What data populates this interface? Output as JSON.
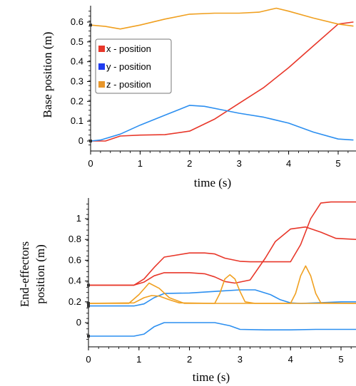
{
  "chart_data": [
    {
      "type": "line",
      "xlabel": "time (s)",
      "ylabel": "Base position (m)",
      "xlim": [
        0,
        5.3
      ],
      "ylim": [
        -0.02,
        0.66
      ],
      "xticks": [
        "0",
        "1",
        "2",
        "3",
        "4",
        "5"
      ],
      "yticks": [
        "0",
        "0.1",
        "0.2",
        "0.3",
        "0.4",
        "0.5",
        "0.6"
      ],
      "legend_position": "upper-left",
      "series": [
        {
          "name": "x - position",
          "color": "#e8372a",
          "x": [
            0,
            0.3,
            0.6,
            1.0,
            1.5,
            2.0,
            2.5,
            3.0,
            3.5,
            4.0,
            4.5,
            5.0,
            5.3
          ],
          "y": [
            0.0,
            0.0,
            0.025,
            0.03,
            0.032,
            0.05,
            0.11,
            0.19,
            0.27,
            0.37,
            0.48,
            0.59,
            0.6
          ]
        },
        {
          "name": "y - position",
          "color": "#2c8ff0",
          "x": [
            0,
            0.2,
            0.6,
            1.0,
            1.5,
            2.0,
            2.3,
            2.7,
            3.0,
            3.5,
            4.0,
            4.5,
            5.0,
            5.3
          ],
          "y": [
            0.0,
            0.005,
            0.035,
            0.08,
            0.13,
            0.18,
            0.175,
            0.155,
            0.14,
            0.12,
            0.09,
            0.045,
            0.01,
            0.005
          ]
        },
        {
          "name": "z - position",
          "color": "#f0a020",
          "x": [
            0,
            0.3,
            0.6,
            1.0,
            1.5,
            2.0,
            2.5,
            3.0,
            3.4,
            3.75,
            4.0,
            4.5,
            5.0,
            5.3
          ],
          "y": [
            0.585,
            0.578,
            0.565,
            0.585,
            0.615,
            0.64,
            0.645,
            0.645,
            0.65,
            0.67,
            0.655,
            0.62,
            0.59,
            0.58
          ]
        }
      ]
    },
    {
      "type": "line",
      "xlabel": "time (s)",
      "ylabel": "End-effectors position (m)",
      "ylabel_lines": [
        "End-effectors",
        "position (m)"
      ],
      "xlim": [
        0,
        5.3
      ],
      "ylim": [
        -0.16,
        1.16
      ],
      "xticks": [
        "0",
        "1",
        "2",
        "3",
        "4",
        "5"
      ],
      "yticks": [
        "0",
        "0.2",
        "0.4",
        "0.6",
        "0.8",
        "1"
      ],
      "series": [
        {
          "color": "#e8372a",
          "x": [
            0,
            0.9,
            1.1,
            1.3,
            1.5,
            2.0,
            2.3,
            2.5,
            2.7,
            3.0,
            3.2,
            3.4,
            3.8,
            4.0,
            4.2,
            4.4,
            4.6,
            4.8,
            5.3
          ],
          "y": [
            0.36,
            0.36,
            0.42,
            0.53,
            0.63,
            0.67,
            0.67,
            0.66,
            0.62,
            0.59,
            0.585,
            0.585,
            0.585,
            0.585,
            0.75,
            1.0,
            1.15,
            1.16,
            1.16
          ]
        },
        {
          "color": "#e8372a",
          "x": [
            0,
            0.9,
            1.1,
            1.3,
            1.5,
            2.0,
            2.3,
            2.5,
            2.7,
            2.9,
            3.2,
            3.5,
            3.7,
            4.0,
            4.3,
            4.6,
            4.9,
            5.3
          ],
          "y": [
            0.36,
            0.36,
            0.39,
            0.45,
            0.48,
            0.48,
            0.47,
            0.44,
            0.395,
            0.38,
            0.41,
            0.62,
            0.78,
            0.9,
            0.92,
            0.87,
            0.81,
            0.8
          ]
        },
        {
          "color": "#2c8ff0",
          "x": [
            0,
            0.9,
            1.1,
            1.3,
            1.5,
            2.0,
            2.5,
            3.0,
            3.3,
            3.6,
            3.8,
            4.0,
            4.2,
            4.5,
            5.0,
            5.3
          ],
          "y": [
            0.16,
            0.16,
            0.18,
            0.24,
            0.28,
            0.285,
            0.3,
            0.315,
            0.315,
            0.27,
            0.22,
            0.19,
            0.185,
            0.19,
            0.2,
            0.2
          ]
        },
        {
          "color": "#2c8ff0",
          "x": [
            0,
            0.9,
            1.1,
            1.3,
            1.5,
            2.0,
            2.5,
            2.8,
            3.0,
            3.5,
            4.0,
            4.5,
            5.0,
            5.3
          ],
          "y": [
            -0.13,
            -0.13,
            -0.11,
            -0.04,
            0.0,
            0.0,
            0.0,
            -0.03,
            -0.065,
            -0.07,
            -0.07,
            -0.065,
            -0.065,
            -0.065
          ]
        },
        {
          "color": "#f0a020",
          "x": [
            0,
            0.8,
            1.0,
            1.2,
            1.4,
            1.6,
            1.9,
            2.5,
            2.6,
            2.7,
            2.8,
            2.9,
            3.0,
            3.1,
            3.3,
            3.6,
            3.8,
            4.0,
            4.1,
            4.2,
            4.3,
            4.4,
            4.5,
            4.6,
            5.3
          ],
          "y": [
            0.185,
            0.185,
            0.27,
            0.38,
            0.33,
            0.24,
            0.185,
            0.185,
            0.28,
            0.42,
            0.46,
            0.42,
            0.3,
            0.2,
            0.185,
            0.185,
            0.185,
            0.185,
            0.28,
            0.45,
            0.545,
            0.45,
            0.28,
            0.19,
            0.185
          ]
        },
        {
          "color": "#f0a020",
          "x": [
            0,
            0.9,
            1.1,
            1.25,
            1.4,
            1.6,
            1.8,
            2.5,
            3.0,
            3.5,
            4.0,
            4.5,
            5.0,
            5.3
          ],
          "y": [
            0.185,
            0.19,
            0.24,
            0.26,
            0.255,
            0.22,
            0.19,
            0.185,
            0.185,
            0.185,
            0.185,
            0.185,
            0.185,
            0.185
          ]
        }
      ]
    }
  ]
}
